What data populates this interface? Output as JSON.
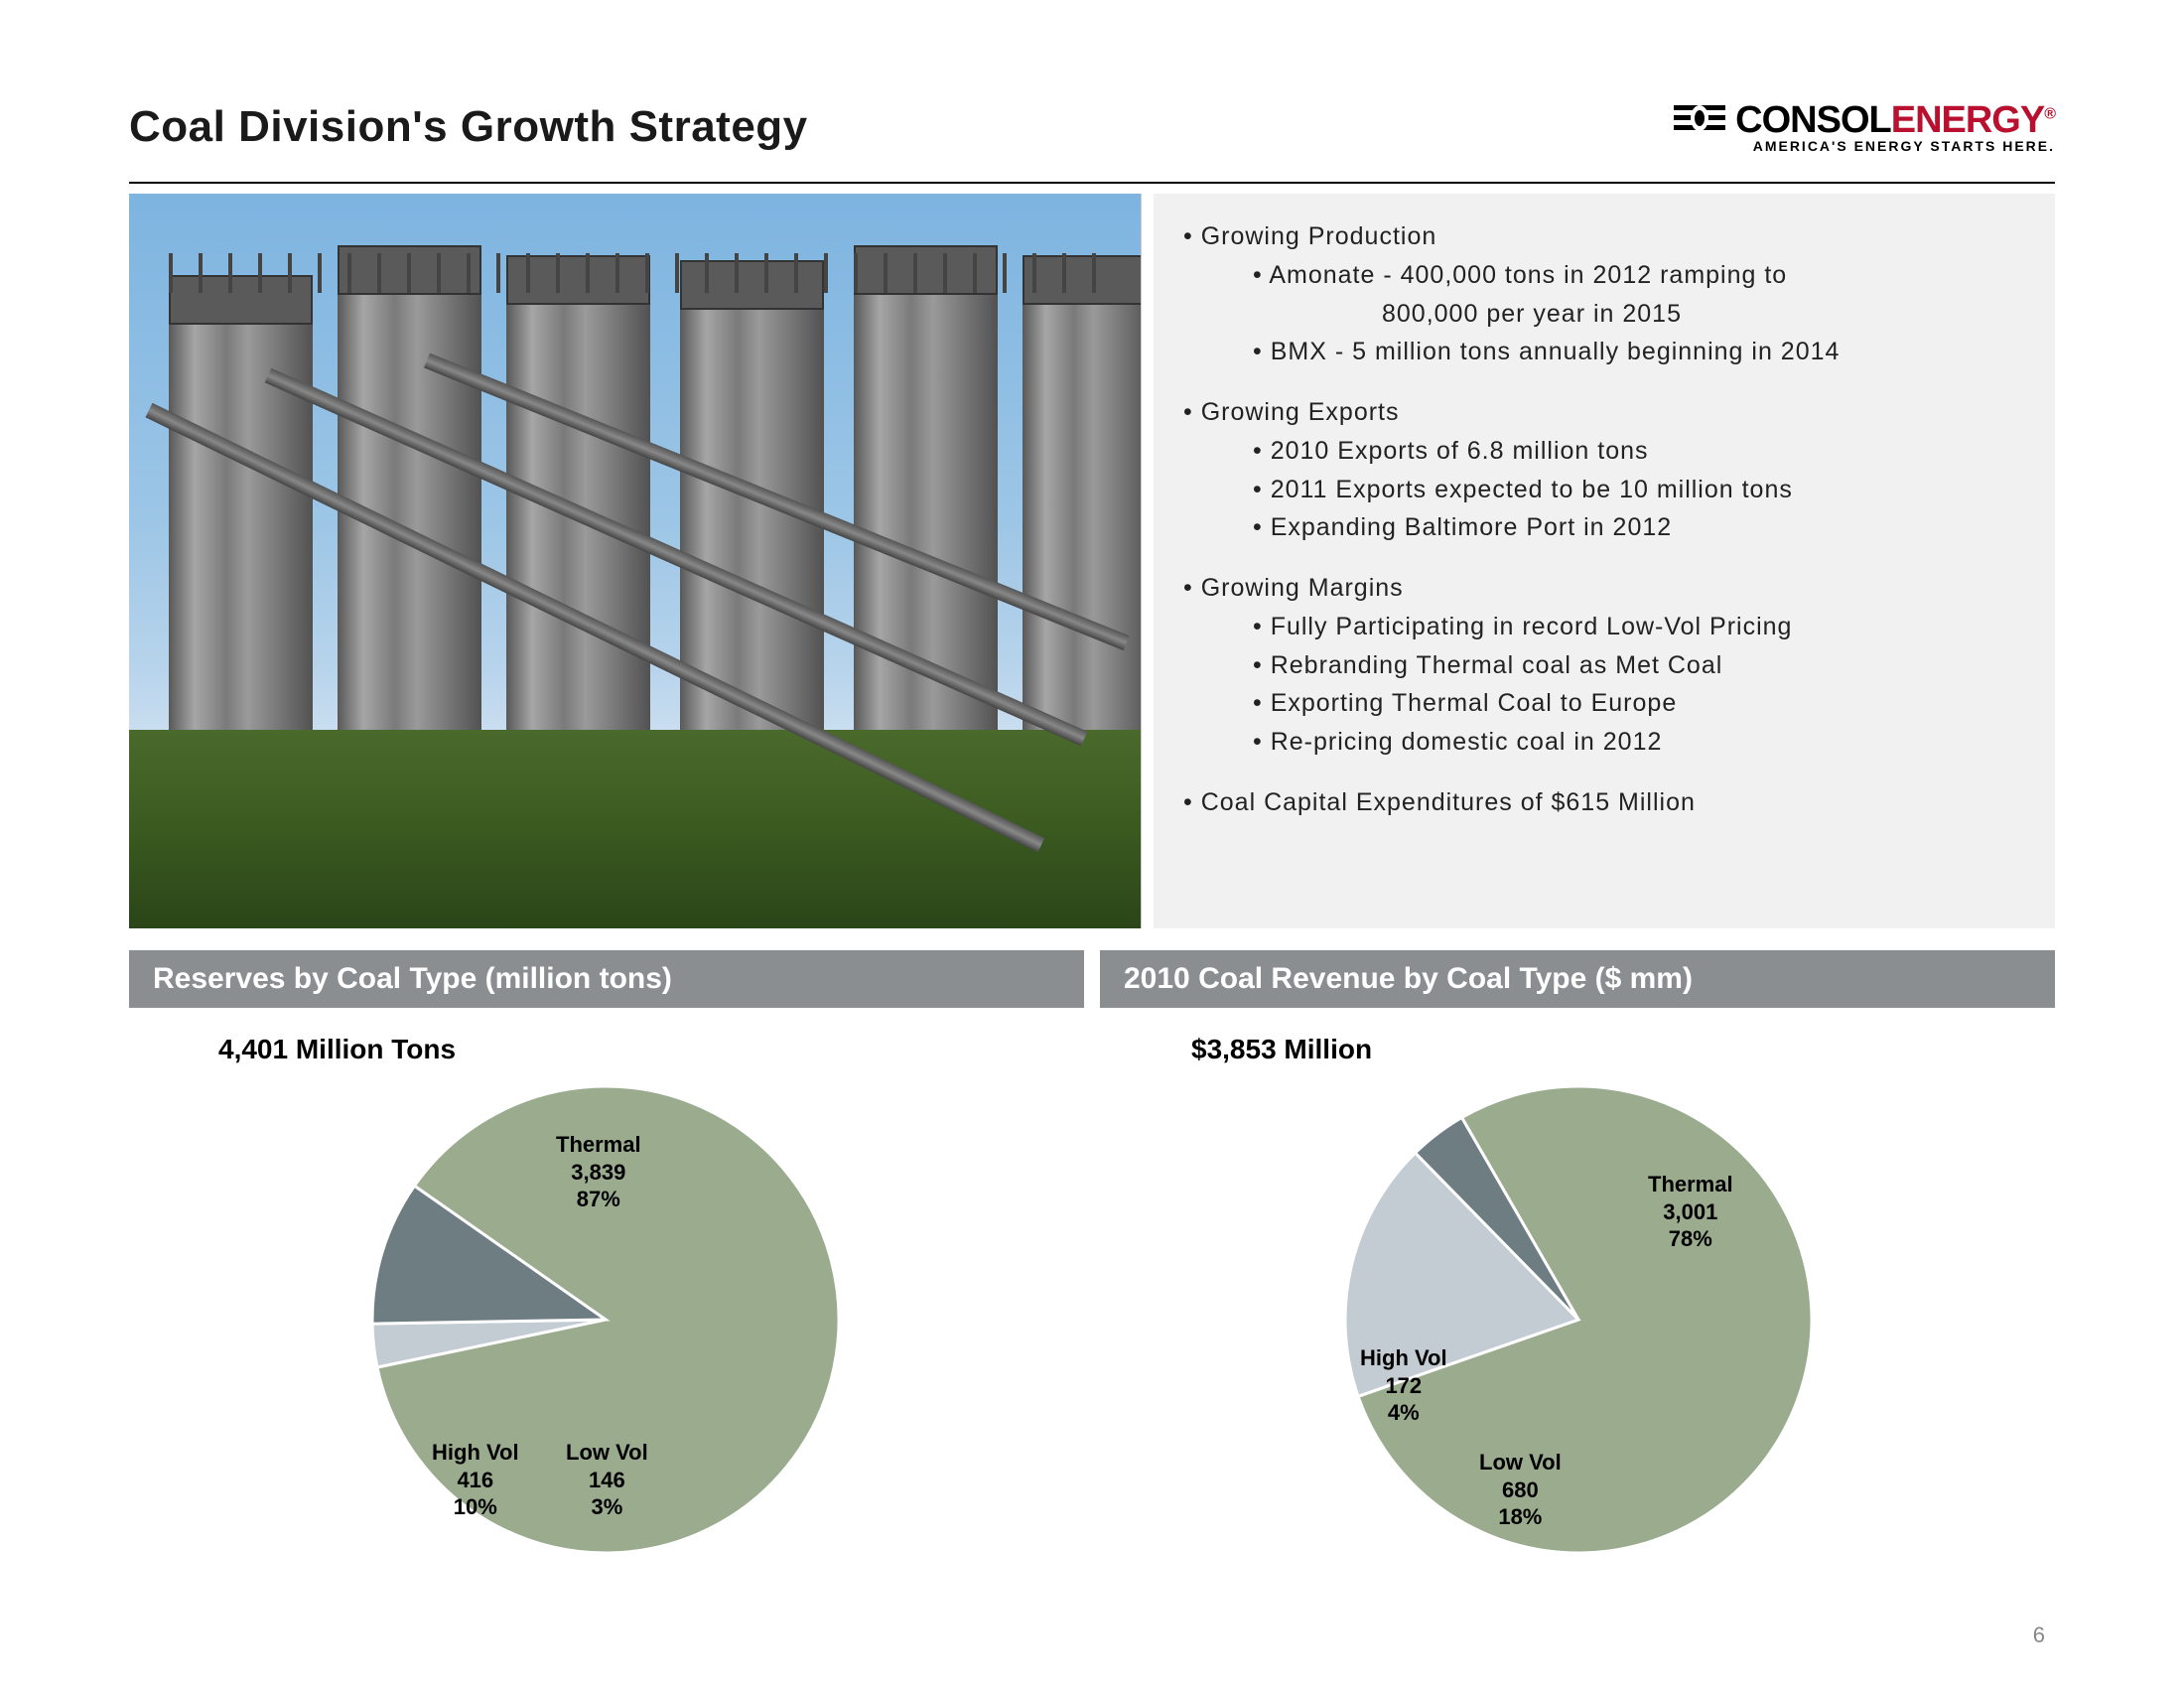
{
  "title": "Coal Division's Growth Strategy",
  "logo": {
    "brand1": "CONSOL",
    "brand2": "ENERGY",
    "brand1_color": "#000000",
    "brand2_color": "#b8102e",
    "tagline": "AMERICA'S ENERGY STARTS HERE."
  },
  "bullets": {
    "sections": [
      {
        "heading": "Growing Production",
        "items": [
          "Amonate - 400,000 tons in 2012 ramping to",
          "BMX  - 5 million tons annually beginning in 2014"
        ],
        "extra_line_after_first": "800,000 per year in 2015"
      },
      {
        "heading": "Growing Exports",
        "items": [
          "2010 Exports of 6.8 million tons",
          "2011 Exports expected to be 10 million tons",
          "Expanding Baltimore Port in 2012"
        ]
      },
      {
        "heading": "Growing Margins",
        "items": [
          "Fully Participating in record Low-Vol Pricing",
          "Rebranding Thermal coal as Met Coal",
          "Exporting Thermal Coal to Europe",
          "Re-pricing domestic coal in 2012"
        ]
      },
      {
        "heading": "Coal Capital Expenditures of $615 Million",
        "items": []
      }
    ]
  },
  "subheaders": {
    "left": "Reserves by Coal Type (million tons)",
    "right": "2010 Coal Revenue by Coal Type ($ mm)"
  },
  "chart_left": {
    "type": "pie",
    "total_label": "4,401 Million Tons",
    "slices": [
      {
        "name": "Thermal",
        "value": 3839,
        "pct": 87,
        "color": "#9aab8e"
      },
      {
        "name": "Low Vol",
        "value": 146,
        "pct": 3,
        "color": "#c3ccd2"
      },
      {
        "name": "High Vol",
        "value": 416,
        "pct": 10,
        "color": "#6e7d82"
      }
    ],
    "labels": {
      "thermal": {
        "name": "Thermal",
        "value": "3,839",
        "pct": "87%"
      },
      "lowvol": {
        "name": "Low Vol",
        "value": "146",
        "pct": "3%"
      },
      "highvol": {
        "name": "High Vol",
        "value": "416",
        "pct": "10%"
      }
    },
    "start_angle_deg": 215,
    "stroke": "#ffffff",
    "stroke_width": 3,
    "background_color": "#ffffff",
    "label_fontsize": 22
  },
  "chart_right": {
    "type": "pie",
    "total_label": "$3,853 Million",
    "slices": [
      {
        "name": "Thermal",
        "value": 3001,
        "pct": 78,
        "color": "#9aab8e"
      },
      {
        "name": "Low Vol",
        "value": 680,
        "pct": 18,
        "color": "#c3ccd2"
      },
      {
        "name": "High Vol",
        "value": 172,
        "pct": 4,
        "color": "#6e7d82"
      }
    ],
    "labels": {
      "thermal": {
        "name": "Thermal",
        "value": "3,001",
        "pct": "78%"
      },
      "lowvol": {
        "name": "Low Vol",
        "value": "680",
        "pct": "18%"
      },
      "highvol": {
        "name": "High Vol",
        "value": "172",
        "pct": "4%"
      }
    },
    "start_angle_deg": 240,
    "stroke": "#ffffff",
    "stroke_width": 3,
    "background_color": "#ffffff",
    "label_fontsize": 22
  },
  "page_number": "6",
  "colors": {
    "subheader_bg": "#8a8e91",
    "subheader_text": "#ffffff",
    "bullets_bg": "#f1f1f1",
    "text": "#222222"
  }
}
